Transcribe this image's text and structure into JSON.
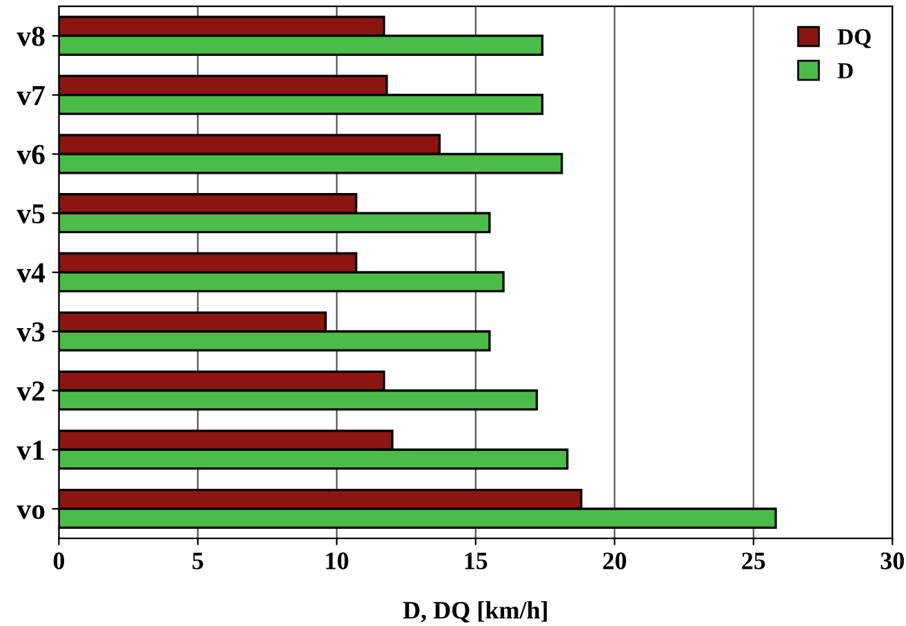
{
  "chart_data": {
    "type": "bar",
    "orientation": "horizontal",
    "xlabel": "D, DQ [km/h]",
    "categories": [
      "v8",
      "v7",
      "v6",
      "v5",
      "v4",
      "v3",
      "v2",
      "v1",
      "vo"
    ],
    "series": [
      {
        "name": "DQ",
        "color": "#8b1510",
        "values": [
          11.7,
          11.8,
          13.7,
          10.7,
          10.7,
          9.6,
          11.7,
          12.0,
          18.8
        ]
      },
      {
        "name": "D",
        "color": "#4cbc48",
        "values": [
          17.4,
          17.4,
          18.1,
          15.5,
          16.0,
          15.5,
          17.2,
          18.3,
          25.8
        ]
      }
    ],
    "xlim": [
      0,
      30
    ],
    "xticks": [
      0,
      5,
      10,
      15,
      20,
      25,
      30
    ],
    "grid": "x",
    "legend": "top right"
  }
}
